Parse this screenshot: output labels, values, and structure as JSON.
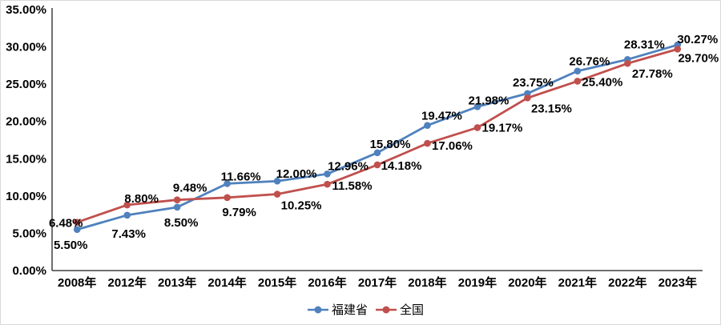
{
  "chart_data": {
    "type": "line",
    "title": "",
    "xlabel": "",
    "ylabel": "",
    "categories": [
      "2008年",
      "2012年",
      "2013年",
      "2014年",
      "2015年",
      "2016年",
      "2017年",
      "2018年",
      "2019年",
      "2020年",
      "2021年",
      "2022年",
      "2023年"
    ],
    "series": [
      {
        "name": "福建省",
        "color": "#4F81BD",
        "values": [
          5.5,
          7.43,
          8.5,
          11.66,
          12.0,
          12.96,
          15.8,
          19.47,
          21.98,
          23.75,
          26.76,
          28.31,
          30.27
        ],
        "label_offsets": [
          [
            -8,
            24
          ],
          [
            2,
            28
          ],
          [
            5,
            24
          ],
          [
            17,
            -4
          ],
          [
            24,
            -4
          ],
          [
            26,
            -5
          ],
          [
            16,
            -6
          ],
          [
            18,
            -7
          ],
          [
            14,
            -3
          ],
          [
            7,
            -9
          ],
          [
            15,
            -7
          ],
          [
            21,
            -14
          ],
          [
            25,
            -2
          ]
        ]
      },
      {
        "name": "全国",
        "color": "#C0504D",
        "values": [
          6.48,
          8.8,
          9.48,
          9.79,
          10.25,
          11.58,
          14.18,
          17.06,
          19.17,
          23.15,
          25.4,
          27.78,
          29.7
        ],
        "label_offsets": [
          [
            -14,
            6
          ],
          [
            18,
            -3
          ],
          [
            16,
            -10
          ],
          [
            15,
            23
          ],
          [
            30,
            19
          ],
          [
            31,
            7
          ],
          [
            30,
            6
          ],
          [
            31,
            8
          ],
          [
            31,
            5
          ],
          [
            30,
            18
          ],
          [
            31,
            6
          ],
          [
            31,
            18
          ],
          [
            26,
            16
          ]
        ]
      }
    ],
    "ylim": [
      0,
      35
    ],
    "y_ticks": [
      0,
      5,
      10,
      15,
      20,
      25,
      30,
      35
    ],
    "y_tick_labels": [
      "0.00%",
      "5.00%",
      "10.00%",
      "15.00%",
      "20.00%",
      "25.00%",
      "30.00%",
      "35.00%"
    ],
    "value_suffix": "%",
    "grid": false,
    "data_labels": true,
    "legend_position": "bottom",
    "axis_color": "#404040",
    "text_color": "#000000",
    "background_color": "#ffffff",
    "border_color": "#d9d9d9"
  }
}
